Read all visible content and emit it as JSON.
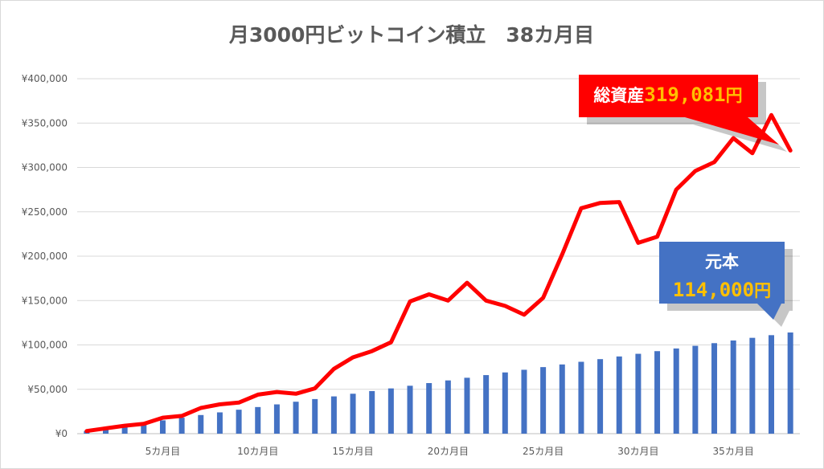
{
  "chart_data": {
    "type": "bar+line",
    "title": "月3000円ビットコイン積立　38カ月目",
    "y_axis": {
      "ylim": [
        0,
        400000
      ],
      "ticks": [
        0,
        50000,
        100000,
        150000,
        200000,
        250000,
        300000,
        350000,
        400000
      ],
      "tick_labels": [
        "¥0",
        "¥50,000",
        "¥100,000",
        "¥150,000",
        "¥200,000",
        "¥250,000",
        "¥300,000",
        "¥350,000",
        "¥400,000"
      ]
    },
    "x_axis": {
      "count": 38,
      "tick_labels": [
        {
          "index": 5,
          "label": "5カ月目"
        },
        {
          "index": 10,
          "label": "10カ月目"
        },
        {
          "index": 15,
          "label": "15カ月目"
        },
        {
          "index": 20,
          "label": "20カ月目"
        },
        {
          "index": 25,
          "label": "25カ月目"
        },
        {
          "index": 30,
          "label": "30カ月目"
        },
        {
          "index": 35,
          "label": "35カ月目"
        }
      ]
    },
    "grid": true,
    "series": [
      {
        "kind": "bar",
        "color": "#4472C4",
        "values": [
          3000,
          6000,
          9000,
          12000,
          15000,
          18000,
          21000,
          24000,
          27000,
          30000,
          33000,
          36000,
          39000,
          42000,
          45000,
          48000,
          51000,
          54000,
          57000,
          60000,
          63000,
          66000,
          69000,
          72000,
          75000,
          78000,
          81000,
          84000,
          87000,
          90000,
          93000,
          96000,
          99000,
          102000,
          105000,
          108000,
          111000,
          114000
        ]
      },
      {
        "kind": "line",
        "color": "#FF0000",
        "values": [
          3000,
          6000,
          9000,
          11000,
          18000,
          20000,
          29000,
          33000,
          35000,
          44000,
          47000,
          45000,
          51000,
          73000,
          86000,
          93000,
          103000,
          149000,
          157000,
          150000,
          170000,
          150000,
          144000,
          134000,
          153000,
          202000,
          254000,
          260000,
          261000,
          215000,
          222000,
          275000,
          296000,
          306000,
          333000,
          316000,
          359000,
          319081
        ]
      }
    ],
    "callouts": [
      {
        "name": "total-assets",
        "label": "総資産",
        "value": "319,081",
        "unit": "円",
        "bg": "#FF0000"
      },
      {
        "name": "principal",
        "label": "元本",
        "value": "114,000",
        "unit": "円",
        "bg": "#4472C4"
      }
    ]
  }
}
